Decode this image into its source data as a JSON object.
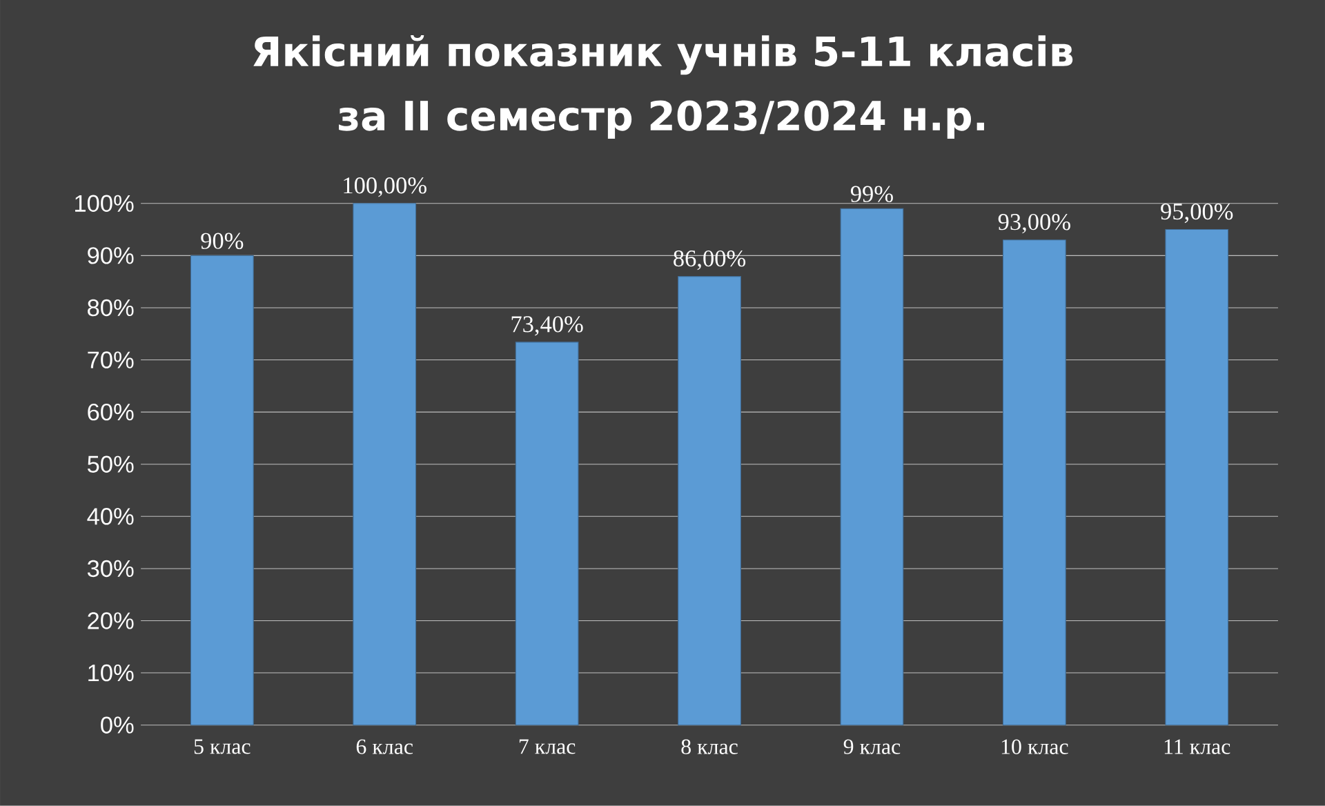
{
  "chart_data": {
    "type": "bar",
    "title": "Якісний показник учнів 5-11 класів",
    "subtitle": "за ІІ семестр 2023/2024 н.р.",
    "categories": [
      "5 клас",
      "6 клас",
      "7 клас",
      "8 клас",
      "9 клас",
      "10 клас",
      "11 клас"
    ],
    "values": [
      90,
      100,
      73.4,
      86,
      99,
      93,
      95
    ],
    "value_labels": [
      "90%",
      "100,00%",
      "73,40%",
      "86,00%",
      "99%",
      "93,00%",
      "95,00%"
    ],
    "color": "#5b9bd5",
    "ylim": [
      0,
      100
    ],
    "yticks": [
      {
        "value": 0,
        "label": "0%"
      },
      {
        "value": 10,
        "label": "10%"
      },
      {
        "value": 20,
        "label": "20%"
      },
      {
        "value": 30,
        "label": "30%"
      },
      {
        "value": 40,
        "label": "40%"
      },
      {
        "value": 50,
        "label": "50%"
      },
      {
        "value": 60,
        "label": "60%"
      },
      {
        "value": 70,
        "label": "70%"
      },
      {
        "value": 80,
        "label": "80%"
      },
      {
        "value": 90,
        "label": "90%"
      },
      {
        "value": 100,
        "label": "100%"
      }
    ],
    "grid": "y"
  }
}
